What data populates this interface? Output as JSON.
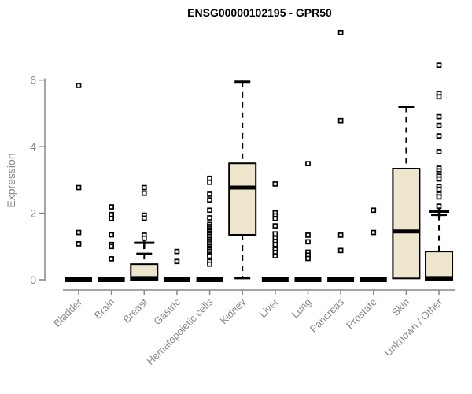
{
  "title": "ENSG00000102195 - GPR50",
  "chart_data": {
    "type": "boxplot",
    "title": "ENSG00000102195 - GPR50",
    "xlabel": "",
    "ylabel": "Expression",
    "ylim": [
      0,
      6
    ],
    "yticks": [
      0,
      2,
      4,
      6
    ],
    "grid": false,
    "legend": "none",
    "box_fill": "#EDE6CD",
    "box_stroke": "#000000",
    "axis_color": "#878787",
    "categories": [
      "Bladder",
      "Brain",
      "Breast",
      "Gastric",
      "Hematopoietic cells",
      "Kidney",
      "Liver",
      "Lung",
      "Pancreas",
      "Prostate",
      "Skin",
      "Unknown / Other"
    ],
    "boxes": [
      {
        "category": "Bladder",
        "low": 0,
        "q1": 0,
        "median": 0,
        "q3": 0,
        "high": 0,
        "outliers": [
          5.84,
          2.77,
          1.42,
          1.08
        ]
      },
      {
        "category": "Brain",
        "low": 0,
        "q1": 0,
        "median": 0,
        "q3": 0,
        "high": 0,
        "outliers": [
          2.19,
          1.96,
          1.84,
          1.35,
          1.06,
          1.0,
          0.63
        ]
      },
      {
        "category": "Breast",
        "low": 0,
        "q1": 0,
        "median": 0.05,
        "q3": 0.47,
        "high": 0.78,
        "mean": 1.11,
        "outliers": [
          2.77,
          2.6,
          1.94,
          1.85,
          1.34,
          1.25
        ]
      },
      {
        "category": "Gastric",
        "low": 0,
        "q1": 0,
        "median": 0,
        "q3": 0,
        "high": 0,
        "outliers": [
          0.85,
          0.55
        ]
      },
      {
        "category": "Hematopoietic cells",
        "low": 0,
        "q1": 0,
        "median": 0,
        "q3": 0,
        "high": 0,
        "outliers": [
          3.05,
          2.93,
          2.57,
          2.4,
          2.09,
          1.86,
          1.66,
          1.6,
          1.55,
          1.5,
          1.45,
          1.4,
          1.35,
          1.3,
          1.25,
          1.2,
          1.15,
          1.1,
          1.05,
          1.0,
          0.95,
          0.9,
          0.85,
          0.8,
          0.75,
          0.71,
          0.55,
          0.47
        ]
      },
      {
        "category": "Kidney",
        "low": 0.05,
        "q1": 1.35,
        "median": 2.77,
        "q3": 3.5,
        "high": 5.95,
        "outliers": []
      },
      {
        "category": "Liver",
        "low": 0,
        "q1": 0,
        "median": 0,
        "q3": 0,
        "high": 0,
        "outliers": [
          2.88,
          2.01,
          1.92,
          1.84,
          1.62,
          1.38,
          1.25,
          1.15,
          1.06,
          0.91,
          0.82,
          0.72
        ]
      },
      {
        "category": "Lung",
        "low": 0,
        "q1": 0,
        "median": 0,
        "q3": 0,
        "high": 0,
        "outliers": [
          3.49,
          1.34,
          1.14,
          0.83,
          0.74,
          0.64
        ]
      },
      {
        "category": "Pancreas",
        "low": 0,
        "q1": 0,
        "median": 0,
        "q3": 0,
        "high": 0,
        "outliers": [
          7.43,
          4.78,
          1.34,
          0.88
        ]
      },
      {
        "category": "Prostate",
        "low": 0,
        "q1": 0,
        "median": 0,
        "q3": 0,
        "high": 0,
        "outliers": [
          2.09,
          1.42
        ]
      },
      {
        "category": "Skin",
        "low": 0.04,
        "q1": 0.04,
        "median": 1.45,
        "q3": 3.34,
        "high": 5.2,
        "outliers": []
      },
      {
        "category": "Unknown / Other",
        "low": 0,
        "q1": 0,
        "median": 0.05,
        "q3": 0.85,
        "high": 1.95,
        "mean": 2.05,
        "outliers": [
          6.45,
          5.6,
          5.5,
          4.9,
          4.64,
          4.32,
          3.85,
          3.35,
          3.27,
          3.19,
          3.11,
          3.03,
          2.8,
          2.72,
          2.57,
          2.49,
          2.21
        ]
      }
    ]
  }
}
